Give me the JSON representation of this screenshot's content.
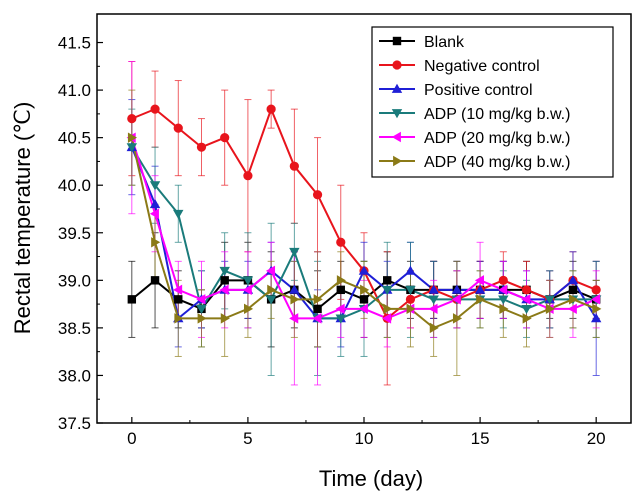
{
  "chart_data": {
    "type": "line",
    "title": "",
    "xlabel": "Time (day)",
    "ylabel": "Rectal temperature (℃)",
    "xlim": [
      -1.5,
      21.5
    ],
    "ylim": [
      37.5,
      41.8
    ],
    "x_ticks": [
      0,
      5,
      10,
      15,
      20
    ],
    "x_tick_labels": [
      "0",
      "5",
      "10",
      "15",
      "20"
    ],
    "y_ticks": [
      37.5,
      38.0,
      38.5,
      39.0,
      39.5,
      40.0,
      40.5,
      41.0,
      41.5
    ],
    "y_tick_labels": [
      "37.5",
      "38.0",
      "38.5",
      "39.0",
      "39.5",
      "40.0",
      "40.5",
      "41.0",
      "41.5"
    ],
    "legend_position": "top-right",
    "grid": false,
    "x": [
      0,
      1,
      2,
      3,
      4,
      5,
      6,
      7,
      8,
      9,
      10,
      11,
      12,
      13,
      14,
      15,
      16,
      17,
      18,
      19,
      20
    ],
    "series": [
      {
        "name": "Blank",
        "color": "#000000",
        "marker": "square",
        "values": [
          38.8,
          39.0,
          38.8,
          38.7,
          39.0,
          39.0,
          38.8,
          38.9,
          38.7,
          38.9,
          38.8,
          39.0,
          38.9,
          38.9,
          38.9,
          38.9,
          38.9,
          38.9,
          38.8,
          38.9,
          38.8
        ],
        "errors": [
          0.4,
          0.5,
          0.3,
          0.2,
          0.4,
          0.4,
          0.5,
          0.4,
          0.4,
          0.3,
          0.4,
          0.3,
          0.3,
          0.3,
          0.3,
          0.3,
          0.3,
          0.3,
          0.2,
          0.3,
          0.2
        ]
      },
      {
        "name": "Negative control",
        "color": "#e8141c",
        "marker": "circle",
        "values": [
          40.7,
          40.8,
          40.6,
          40.4,
          40.5,
          40.1,
          40.8,
          40.2,
          39.9,
          39.4,
          39.1,
          38.6,
          38.8,
          38.9,
          38.8,
          38.9,
          39.0,
          38.9,
          38.8,
          39.0,
          38.9
        ],
        "errors": [
          0.6,
          0.4,
          0.5,
          0.3,
          0.5,
          0.8,
          0.2,
          0.6,
          0.6,
          0.6,
          0.4,
          0.7,
          0.3,
          0.3,
          0.3,
          0.3,
          0.3,
          0.3,
          0.3,
          0.3,
          0.3
        ]
      },
      {
        "name": "Positive control",
        "color": "#1f1fd6",
        "marker": "triangle-up",
        "values": [
          40.4,
          39.8,
          38.6,
          38.8,
          38.9,
          38.9,
          39.1,
          38.9,
          38.6,
          38.6,
          39.1,
          38.9,
          39.1,
          38.9,
          38.9,
          38.9,
          38.9,
          38.8,
          38.8,
          39.0,
          38.6
        ],
        "errors": [
          0.5,
          0.4,
          0.3,
          0.3,
          0.3,
          0.3,
          0.3,
          0.3,
          0.3,
          0.3,
          0.3,
          0.3,
          0.3,
          0.3,
          0.3,
          0.3,
          0.3,
          0.3,
          0.3,
          0.3,
          0.6
        ]
      },
      {
        "name": "ADP (10 mg/kg b.w.)",
        "color": "#1a7b7b",
        "marker": "triangle-down",
        "values": [
          40.4,
          40.0,
          39.7,
          38.7,
          39.1,
          39.0,
          38.8,
          39.3,
          38.6,
          38.6,
          38.7,
          38.9,
          38.9,
          38.8,
          38.8,
          38.8,
          38.8,
          38.7,
          38.8,
          38.8,
          38.8
        ],
        "errors": [
          0.4,
          0.4,
          0.3,
          0.4,
          0.4,
          0.5,
          0.8,
          0.3,
          0.6,
          0.4,
          0.5,
          0.5,
          0.5,
          0.4,
          0.3,
          0.3,
          0.3,
          0.3,
          0.3,
          0.3,
          0.4
        ]
      },
      {
        "name": "ADP (20 mg/kg b.w.)",
        "color": "#ff00ff",
        "marker": "triangle-left",
        "values": [
          40.5,
          39.7,
          38.9,
          38.8,
          38.9,
          38.9,
          39.1,
          38.6,
          38.6,
          38.7,
          38.7,
          38.6,
          38.7,
          38.7,
          38.8,
          39.0,
          38.9,
          38.8,
          38.7,
          38.7,
          38.8
        ],
        "errors": [
          0.8,
          0.4,
          0.3,
          0.4,
          0.4,
          0.4,
          0.3,
          0.7,
          0.7,
          0.3,
          0.3,
          0.3,
          0.2,
          0.3,
          0.3,
          0.4,
          0.3,
          0.3,
          0.3,
          0.3,
          0.3
        ]
      },
      {
        "name": "ADP (40 mg/kg b.w.)",
        "color": "#8b7a17",
        "marker": "triangle-right",
        "values": [
          40.5,
          39.4,
          38.6,
          38.6,
          38.6,
          38.7,
          38.9,
          38.8,
          38.8,
          39.0,
          38.9,
          38.7,
          38.7,
          38.5,
          38.6,
          38.8,
          38.7,
          38.6,
          38.7,
          38.8,
          38.7
        ],
        "errors": [
          0.5,
          0.4,
          0.4,
          0.3,
          0.4,
          0.3,
          0.3,
          0.4,
          0.5,
          0.3,
          0.3,
          0.3,
          0.4,
          0.3,
          0.6,
          0.3,
          0.3,
          0.3,
          0.3,
          0.3,
          0.3
        ]
      }
    ]
  }
}
